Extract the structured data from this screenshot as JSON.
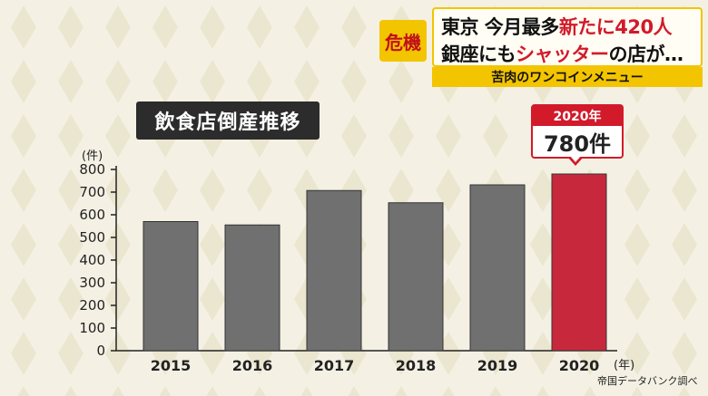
{
  "ticker": {
    "badge": "危機",
    "line1_a": "東京 今月最多",
    "line1_b": "新たに420人",
    "line2_a": "銀座にも",
    "line2_b": "シャッター",
    "line2_c": "の店が…",
    "sub": "苦肉のワンコインメニュー"
  },
  "chart_title": "飲食店倒産推移",
  "unit_label": "(件)",
  "x_unit": "(年)",
  "source": "帝国データバンク調べ",
  "callout": {
    "year": "2020年",
    "value": "780件"
  },
  "colors": {
    "bar": "#707070",
    "highlight": "#c8283c",
    "accent": "#f3c400"
  },
  "chart_data": {
    "type": "bar",
    "categories": [
      "2015",
      "2016",
      "2017",
      "2018",
      "2019",
      "2020"
    ],
    "values": [
      570,
      555,
      707,
      653,
      732,
      780
    ],
    "highlight_index": 5,
    "yticks": [
      0,
      100,
      200,
      300,
      400,
      500,
      600,
      700,
      800
    ],
    "ylim": [
      0,
      800
    ],
    "title": "飲食店倒産推移",
    "xlabel": "(年)",
    "ylabel": "(件)"
  }
}
